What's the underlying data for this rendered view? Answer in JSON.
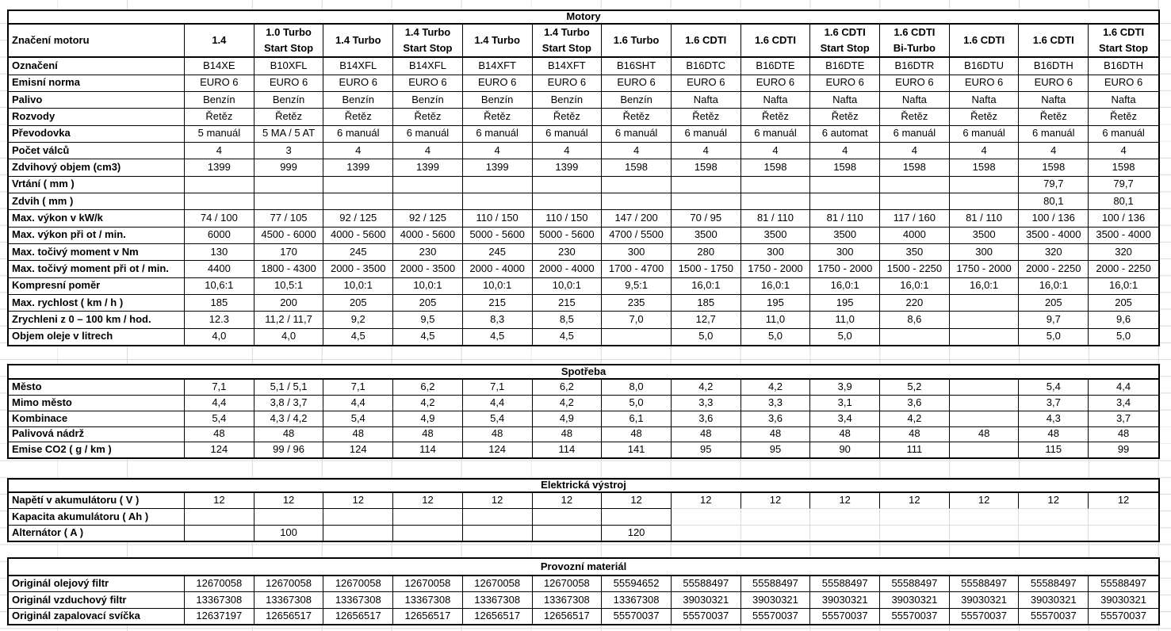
{
  "colors": {
    "border": "#000000",
    "gridline": "#dcdcdc",
    "background": "#ffffff",
    "text": "#000000"
  },
  "columns": [
    "1.4",
    "1.0 Turbo\nStart Stop",
    "1.4 Turbo",
    "1.4 Turbo\nStart Stop",
    "1.4 Turbo",
    "1.4 Turbo\nStart Stop",
    "1.6 Turbo",
    "1.6 CDTI",
    "1.6 CDTI",
    "1.6 CDTI\nStart Stop",
    "1.6 CDTI\nBi-Turbo",
    "1.6 CDTI",
    "1.6 CDTI",
    "1.6 CDTI\nStart Stop"
  ],
  "sections": [
    {
      "title": "Motory",
      "header_label": "Značení motoru",
      "rows": [
        {
          "label": "Označení",
          "values": [
            "B14XE",
            "B10XFL",
            "B14XFL",
            "B14XFL",
            "B14XFT",
            "B14XFT",
            "B16SHT",
            "B16DTC",
            "B16DTE",
            "B16DTE",
            "B16DTR",
            "B16DTU",
            "B16DTH",
            "B16DTH"
          ]
        },
        {
          "label": "Emisní norma",
          "values": [
            "EURO 6",
            "EURO 6",
            "EURO 6",
            "EURO 6",
            "EURO 6",
            "EURO 6",
            "EURO 6",
            "EURO 6",
            "EURO 6",
            "EURO 6",
            "EURO 6",
            "EURO 6",
            "EURO 6",
            "EURO 6"
          ]
        },
        {
          "label": "Palivo",
          "values": [
            "Benzín",
            "Benzín",
            "Benzín",
            "Benzín",
            "Benzín",
            "Benzín",
            "Benzín",
            "Nafta",
            "Nafta",
            "Nafta",
            "Nafta",
            "Nafta",
            "Nafta",
            "Nafta"
          ]
        },
        {
          "label": "Rozvody",
          "values": [
            "Řetěz",
            "Řetěz",
            "Řetěz",
            "Řetěz",
            "Řetěz",
            "Řetěz",
            "Řetěz",
            "Řetěz",
            "Řetěz",
            "Řetěz",
            "Řetěz",
            "Řetěz",
            "Řetěz",
            "Řetěz"
          ]
        },
        {
          "label": "Převodovka",
          "values": [
            "5 manuál",
            "5 MA / 5 AT",
            "6 manuál",
            "6 manuál",
            "6 manuál",
            "6 manuál",
            "6 manuál",
            "6 manuál",
            "6 manuál",
            "6 automat",
            "6 manuál",
            "6 manuál",
            "6 manuál",
            "6 manuál"
          ]
        },
        {
          "label": "Počet válců",
          "values": [
            "4",
            "3",
            "4",
            "4",
            "4",
            "4",
            "4",
            "4",
            "4",
            "4",
            "4",
            "4",
            "4",
            "4"
          ]
        },
        {
          "label": "Zdvihový objem (cm3)",
          "values": [
            "1399",
            "999",
            "1399",
            "1399",
            "1399",
            "1399",
            "1598",
            "1598",
            "1598",
            "1598",
            "1598",
            "1598",
            "1598",
            "1598"
          ]
        },
        {
          "label": "Vrtání ( mm )",
          "values": [
            "",
            "",
            "",
            "",
            "",
            "",
            "",
            "",
            "",
            "",
            "",
            "",
            "79,7",
            "79,7"
          ]
        },
        {
          "label": "Zdvih ( mm )",
          "values": [
            "",
            "",
            "",
            "",
            "",
            "",
            "",
            "",
            "",
            "",
            "",
            "",
            "80,1",
            "80,1"
          ]
        },
        {
          "label": "Max. výkon v kW/k",
          "values": [
            "74 / 100",
            "77 / 105",
            "92 / 125",
            "92 / 125",
            "110 / 150",
            "110 / 150",
            "147 / 200",
            "70 / 95",
            "81 / 110",
            "81 / 110",
            "117 / 160",
            "81 / 110",
            "100 / 136",
            "100 / 136"
          ]
        },
        {
          "label": "Max. výkon při ot / min.",
          "values": [
            "6000",
            "4500 - 6000",
            "4000 - 5600",
            "4000 - 5600",
            "5000 - 5600",
            "5000 - 5600",
            "4700 / 5500",
            "3500",
            "3500",
            "3500",
            "4000",
            "3500",
            "3500 - 4000",
            "3500 - 4000"
          ]
        },
        {
          "label": "Max. točivý moment v Nm",
          "values": [
            "130",
            "170",
            "245",
            "230",
            "245",
            "230",
            "300",
            "280",
            "300",
            "300",
            "350",
            "300",
            "320",
            "320"
          ]
        },
        {
          "label": "Max. točivý moment při ot / min.",
          "values": [
            "4400",
            "1800 - 4300",
            "2000 - 3500",
            "2000 - 3500",
            "2000 - 4000",
            "2000 - 4000",
            "1700 - 4700",
            "1500 - 1750",
            "1750 - 2000",
            "1750 - 2000",
            "1500 - 2250",
            "1750 - 2000",
            "2000 - 2250",
            "2000 - 2250"
          ]
        },
        {
          "label": "Kompresní poměr",
          "values": [
            "10,6:1",
            "10,5:1",
            "10,0:1",
            "10,0:1",
            "10,0:1",
            "10,0:1",
            "9,5:1",
            "16,0:1",
            "16,0:1",
            "16,0:1",
            "16,0:1",
            "16,0:1",
            "16,0:1",
            "16,0:1"
          ]
        },
        {
          "label": "Max. rychlost ( km / h )",
          "values": [
            "185",
            "200",
            "205",
            "205",
            "215",
            "215",
            "235",
            "185",
            "195",
            "195",
            "220",
            "",
            "205",
            "205"
          ]
        },
        {
          "label": "Zrychleni z 0 – 100 km / hod.",
          "values": [
            "12.3",
            "11,2 / 11,7",
            "9,2",
            "9,5",
            "8,3",
            "8,5",
            "7,0",
            "12,7",
            "11,0",
            "11,0",
            "8,6",
            "",
            "9,7",
            "9,6"
          ]
        },
        {
          "label": "Objem oleje v litrech",
          "values": [
            "4,0",
            "4,0",
            "4,5",
            "4,5",
            "4,5",
            "4,5",
            "",
            "5,0",
            "5,0",
            "5,0",
            "",
            "",
            "5,0",
            "5,0"
          ]
        }
      ]
    },
    {
      "title": "Spotřeba",
      "rows": [
        {
          "label": "Město",
          "values": [
            "7,1",
            "5,1 / 5,1",
            "7,1",
            "6,2",
            "7,1",
            "6,2",
            "8,0",
            "4,2",
            "4,2",
            "3,9",
            "5,2",
            "",
            "5,4",
            "4,4"
          ]
        },
        {
          "label": "Mimo město",
          "values": [
            "4,4",
            "3,8 / 3,7",
            "4,4",
            "4,2",
            "4,4",
            "4,2",
            "5,0",
            "3,3",
            "3,3",
            "3,1",
            "3,6",
            "",
            "3,7",
            "3,4"
          ]
        },
        {
          "label": "Kombinace",
          "values": [
            "5,4",
            "4,3 / 4,2",
            "5,4",
            "4,9",
            "5,4",
            "4,9",
            "6,1",
            "3,6",
            "3,6",
            "3,4",
            "4,2",
            "",
            "4,3",
            "3,7"
          ]
        },
        {
          "label": "Palivová nádrž",
          "values": [
            "48",
            "48",
            "48",
            "48",
            "48",
            "48",
            "48",
            "48",
            "48",
            "48",
            "48",
            "48",
            "48",
            "48"
          ]
        },
        {
          "label": "Emise CO2 ( g / km )",
          "values": [
            "124",
            "99 / 96",
            "124",
            "114",
            "124",
            "114",
            "141",
            "95",
            "95",
            "90",
            "111",
            "",
            "115",
            "99"
          ]
        }
      ]
    },
    {
      "title": "Elektrická výstroj",
      "rows": [
        {
          "label": "Napětí v akumulátoru ( V )",
          "values": [
            "12",
            "12",
            "12",
            "12",
            "12",
            "12",
            "12",
            "12",
            "12",
            "12",
            "12",
            "12",
            "12",
            "12"
          ]
        },
        {
          "label": "Kapacita akumulátoru ( Ah )",
          "values": [
            "",
            "",
            "",
            "",
            "",
            "",
            "",
            "",
            "",
            "",
            "",
            "",
            "",
            ""
          ]
        },
        {
          "label": "Alternátor ( A )",
          "values": [
            "",
            "100",
            "",
            "",
            "",
            "",
            "120",
            "",
            "",
            "",
            "",
            "",
            "",
            ""
          ]
        }
      ]
    },
    {
      "title": "Provozní materiál",
      "rows": [
        {
          "label": "Originál olejový filtr",
          "values": [
            "12670058",
            "12670058",
            "12670058",
            "12670058",
            "12670058",
            "12670058",
            "55594652",
            "55588497",
            "55588497",
            "55588497",
            "55588497",
            "55588497",
            "55588497",
            "55588497"
          ]
        },
        {
          "label": "Originál vzduchový filtr",
          "values": [
            "13367308",
            "13367308",
            "13367308",
            "13367308",
            "13367308",
            "13367308",
            "13367308",
            "39030321",
            "39030321",
            "39030321",
            "39030321",
            "39030321",
            "39030321",
            "39030321"
          ]
        },
        {
          "label": "Originál zapalovací svíčka",
          "values": [
            "12637197",
            "12656517",
            "12656517",
            "12656517",
            "12656517",
            "12656517",
            "55570037",
            "55570037",
            "55570037",
            "55570037",
            "55570037",
            "55570037",
            "55570037",
            "55570037"
          ]
        }
      ]
    }
  ]
}
